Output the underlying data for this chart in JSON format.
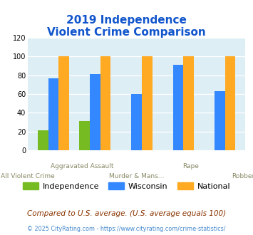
{
  "title_line1": "2019 Independence",
  "title_line2": "Violent Crime Comparison",
  "categories": [
    "All Violent Crime",
    "Aggravated Assault",
    "Murder & Mans...",
    "Rape",
    "Robbery"
  ],
  "x_labels_top": [
    "",
    "Aggravated Assault",
    "",
    "Rape",
    ""
  ],
  "x_labels_bot": [
    "All Violent Crime",
    "",
    "Murder & Mans...",
    "",
    "Robbery"
  ],
  "independence": [
    21,
    31,
    0,
    0,
    0
  ],
  "wisconsin": [
    77,
    81,
    60,
    91,
    63
  ],
  "national": [
    100,
    100,
    100,
    100,
    100
  ],
  "colors": {
    "independence": "#77bb22",
    "wisconsin": "#3388ff",
    "national": "#ffaa22"
  },
  "ylim": [
    0,
    120
  ],
  "yticks": [
    0,
    20,
    40,
    60,
    80,
    100,
    120
  ],
  "title_color": "#1155cc",
  "plot_bg": "#ddeef5",
  "footer_text": "Compared to U.S. average. (U.S. average equals 100)",
  "credit_text": "© 2025 CityRating.com - https://www.cityrating.com/crime-statistics/",
  "legend_labels": [
    "Independence",
    "Wisconsin",
    "National"
  ],
  "footer_color": "#883300",
  "credit_color": "#4488cc"
}
